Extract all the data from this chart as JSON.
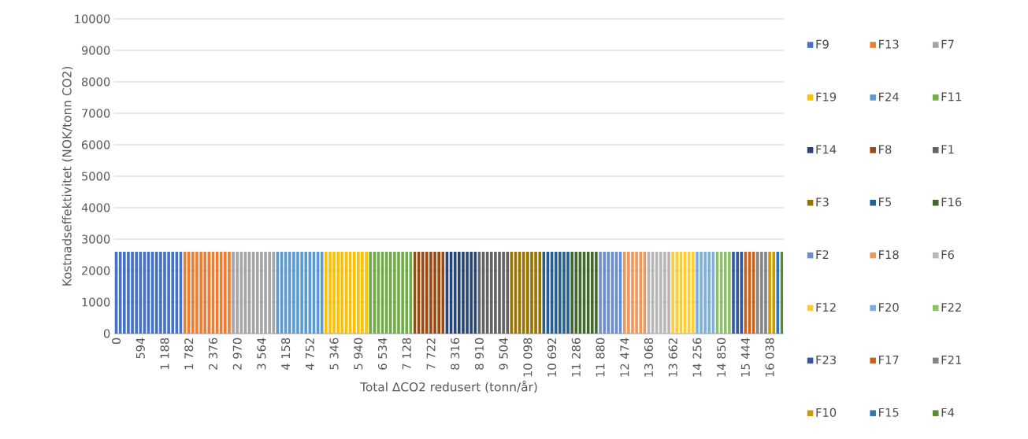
{
  "chart_data": {
    "type": "bar",
    "xlabel": "Total ΔCO2 redusert (tonn/år)",
    "ylabel": "Kostnadseffektivitet (NOK/tonn CO2)",
    "xlim": [
      -49.5,
      16384.5
    ],
    "ylim": [
      0,
      10000
    ],
    "yticks": [
      0,
      1000,
      2000,
      3000,
      4000,
      5000,
      6000,
      7000,
      8000,
      9000,
      10000
    ],
    "xticks": [
      0,
      594,
      {
        "value": 1188,
        "label": "1 188"
      },
      {
        "value": 1782,
        "label": "1 782"
      },
      {
        "value": 2376,
        "label": "2 376"
      },
      {
        "value": 2970,
        "label": "2 970"
      },
      {
        "value": 3564,
        "label": "3 564"
      },
      {
        "value": 4158,
        "label": "4 158"
      },
      {
        "value": 4752,
        "label": "4 752"
      },
      {
        "value": 5346,
        "label": "5 346"
      },
      {
        "value": 5940,
        "label": "5 940"
      },
      {
        "value": 6534,
        "label": "6 534"
      },
      {
        "value": 7128,
        "label": "7 128"
      },
      {
        "value": 7722,
        "label": "7 722"
      },
      {
        "value": 8316,
        "label": "8 316"
      },
      {
        "value": 8910,
        "label": "8 910"
      },
      {
        "value": 9504,
        "label": "9 504"
      },
      {
        "value": 10098,
        "label": "10 098"
      },
      {
        "value": 10692,
        "label": "10 692"
      },
      {
        "value": 11286,
        "label": "11 286"
      },
      {
        "value": 11880,
        "label": "11 880"
      },
      {
        "value": 12474,
        "label": "12 474"
      },
      {
        "value": 13068,
        "label": "13 068"
      },
      {
        "value": 13662,
        "label": "13 662"
      },
      {
        "value": 14256,
        "label": "14 256"
      },
      {
        "value": 14850,
        "label": "14 850"
      },
      {
        "value": 15444,
        "label": "15 444"
      },
      {
        "value": 16038,
        "label": "16 038"
      }
    ],
    "grid": "y",
    "legend": "right",
    "series": [
      {
        "name": "F9",
        "color": "#4472c4",
        "x": [
          0,
          99,
          198,
          297,
          396,
          495,
          594,
          693,
          792,
          891,
          990,
          1089,
          1188,
          1287,
          1386,
          1485,
          1584
        ],
        "values": [
          2600,
          2600,
          2600,
          2600,
          2600,
          2600,
          2600,
          2600,
          2600,
          2600,
          2600,
          2600,
          2600,
          2600,
          2600,
          2600,
          2600
        ]
      },
      {
        "name": "F13",
        "color": "#ed7d31",
        "x": [
          1683,
          1782,
          1881,
          1980,
          2079,
          2178,
          2277,
          2376,
          2475,
          2574,
          2673,
          2772
        ],
        "values": [
          2600,
          2600,
          2600,
          2600,
          2600,
          2600,
          2600,
          2600,
          2600,
          2600,
          2600,
          2600
        ]
      },
      {
        "name": "F7",
        "color": "#a5a5a5",
        "x": [
          2871,
          2970,
          3069,
          3168,
          3267,
          3366,
          3465,
          3564,
          3663,
          3762,
          3861
        ],
        "values": [
          2600,
          2600,
          2600,
          2600,
          2600,
          2600,
          2600,
          2600,
          2600,
          2600,
          2600
        ]
      },
      {
        "name": "F19",
        "color": "#ffc000",
        "x": [
          5148,
          5247,
          5346,
          5445,
          5544,
          5643,
          5742,
          5841,
          5940,
          6039,
          6138
        ],
        "values": [
          2600,
          2600,
          2600,
          2600,
          2600,
          2600,
          2600,
          2600,
          2600,
          2600,
          2600
        ]
      },
      {
        "name": "F24",
        "color": "#5b9bd5",
        "x": [
          3960,
          4059,
          4158,
          4257,
          4356,
          4455,
          4554,
          4653,
          4752,
          4851,
          4950,
          5049
        ],
        "values": [
          2600,
          2600,
          2600,
          2600,
          2600,
          2600,
          2600,
          2600,
          2600,
          2600,
          2600,
          2600
        ]
      },
      {
        "name": "F11",
        "color": "#70ad47",
        "x": [
          6237,
          6336,
          6435,
          6534,
          6633,
          6732,
          6831,
          6930,
          7029,
          7128,
          7227
        ],
        "values": [
          2600,
          2600,
          2600,
          2600,
          2600,
          2600,
          2600,
          2600,
          2600,
          2600,
          2600
        ]
      },
      {
        "name": "F14",
        "color": "#264478",
        "x": [
          8118,
          8217,
          8316,
          8415,
          8514,
          8613,
          8712,
          8811
        ],
        "values": [
          2600,
          2600,
          2600,
          2600,
          2600,
          2600,
          2600,
          2600
        ]
      },
      {
        "name": "F8",
        "color": "#9e480e",
        "x": [
          7326,
          7425,
          7524,
          7623,
          7722,
          7821,
          7920,
          8019
        ],
        "values": [
          2600,
          2600,
          2600,
          2600,
          2600,
          2600,
          2600,
          2600
        ]
      },
      {
        "name": "F1",
        "color": "#636363",
        "x": [
          8910,
          9009,
          9108,
          9207,
          9306,
          9405,
          9504,
          9603
        ],
        "values": [
          2600,
          2600,
          2600,
          2600,
          2600,
          2600,
          2600,
          2600
        ]
      },
      {
        "name": "F3",
        "color": "#997300",
        "x": [
          9702,
          9801,
          9900,
          9999,
          10098,
          10197,
          10296,
          10395
        ],
        "values": [
          2600,
          2600,
          2600,
          2600,
          2600,
          2600,
          2600,
          2600
        ]
      },
      {
        "name": "F5",
        "color": "#255e91",
        "x": [
          10494,
          10593,
          10692,
          10791,
          10890,
          10989,
          11088
        ],
        "values": [
          2600,
          2600,
          2600,
          2600,
          2600,
          2600,
          2600
        ]
      },
      {
        "name": "F16",
        "color": "#43682b",
        "x": [
          11187,
          11286,
          11385,
          11484,
          11583,
          11682,
          11781
        ],
        "values": [
          2600,
          2600,
          2600,
          2600,
          2600,
          2600,
          2600
        ]
      },
      {
        "name": "F2",
        "color": "#698ed0",
        "x": [
          11880,
          11979,
          12078,
          12177,
          12276,
          12375
        ],
        "values": [
          2600,
          2600,
          2600,
          2600,
          2600,
          2600
        ]
      },
      {
        "name": "F18",
        "color": "#f1975a",
        "x": [
          12474,
          12573,
          12672,
          12771,
          12870,
          12969
        ],
        "values": [
          2600,
          2600,
          2600,
          2600,
          2600,
          2600
        ]
      },
      {
        "name": "F6",
        "color": "#b7b7b7",
        "x": [
          13068,
          13167,
          13266,
          13365,
          13464,
          13563
        ],
        "values": [
          2600,
          2600,
          2600,
          2600,
          2600,
          2600
        ]
      },
      {
        "name": "F12",
        "color": "#ffcd33",
        "x": [
          13662,
          13761,
          13860,
          13959,
          14058,
          14157
        ],
        "values": [
          2600,
          2600,
          2600,
          2600,
          2600,
          2600
        ]
      },
      {
        "name": "F20",
        "color": "#7cafdd",
        "x": [
          14256,
          14355,
          14454,
          14553,
          14652
        ],
        "values": [
          2600,
          2600,
          2600,
          2600,
          2600
        ]
      },
      {
        "name": "F22",
        "color": "#8cc168",
        "x": [
          14751,
          14850,
          14949,
          15048
        ],
        "values": [
          2600,
          2600,
          2600,
          2600
        ]
      },
      {
        "name": "F23",
        "color": "#335aa1",
        "x": [
          15147,
          15246,
          15345
        ],
        "values": [
          2600,
          2600,
          2600
        ]
      },
      {
        "name": "F17",
        "color": "#d26012",
        "x": [
          15444,
          15543,
          15642
        ],
        "values": [
          2600,
          2600,
          2600
        ]
      },
      {
        "name": "F21",
        "color": "#848484",
        "x": [
          15741,
          15840,
          15939
        ],
        "values": [
          2600,
          2600,
          2600
        ]
      },
      {
        "name": "F10",
        "color": "#cc9a00",
        "x": [
          16038,
          16137
        ],
        "values": [
          2600,
          2600
        ]
      },
      {
        "name": "F15",
        "color": "#2e75b6",
        "x": [
          16236
        ],
        "values": [
          2600
        ]
      },
      {
        "name": "F4",
        "color": "#5a8a39",
        "x": [
          16335
        ],
        "values": [
          2600
        ]
      }
    ]
  }
}
